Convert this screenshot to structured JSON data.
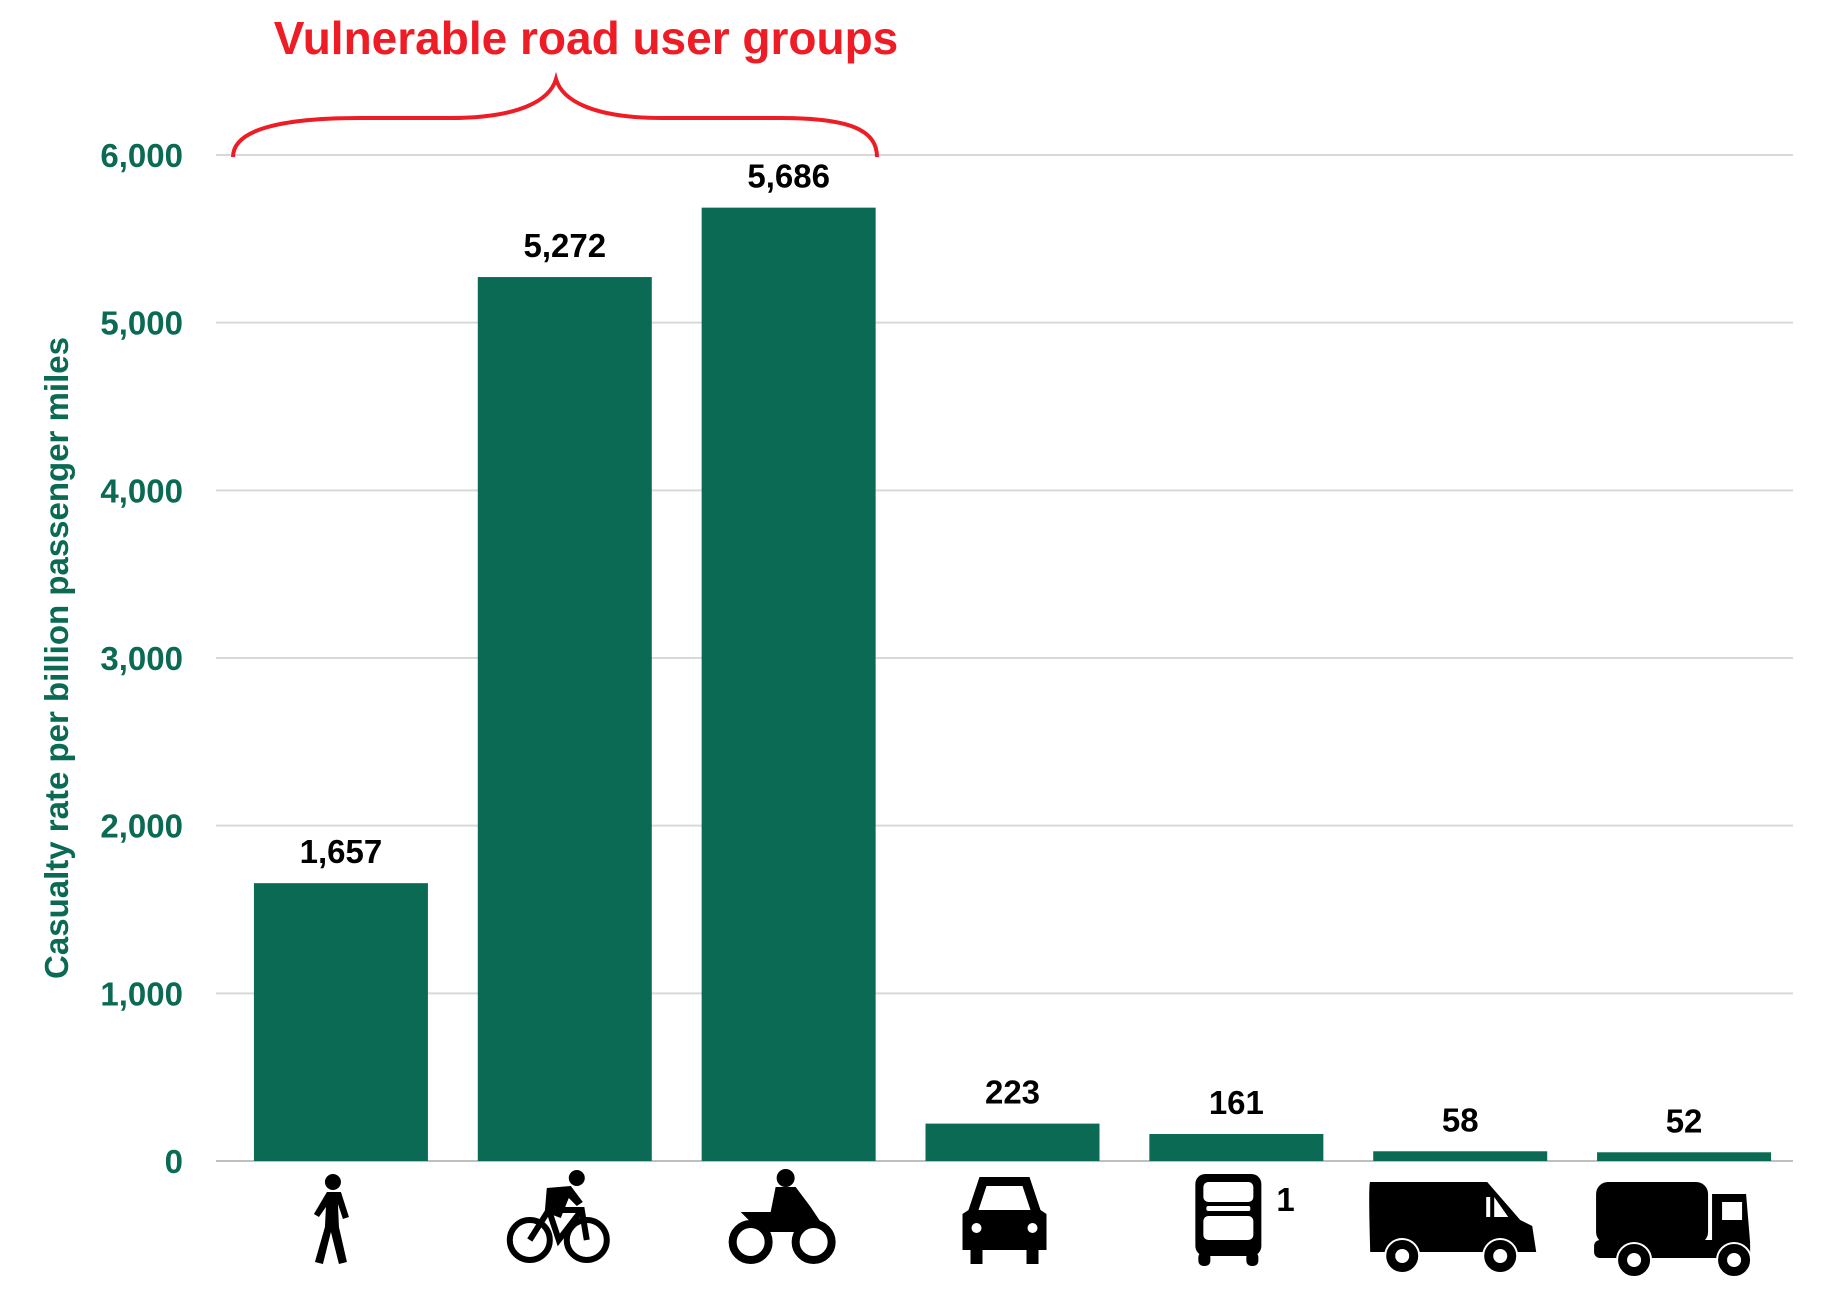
{
  "chart_data": {
    "type": "bar",
    "title": "",
    "annotation": "Vulnerable road user groups",
    "annotation_spans": [
      "Pedestrian",
      "Pedal cyclist",
      "Motorcyclist"
    ],
    "ylabel": "Casualty rate per billion passenger miles",
    "xlabel": "",
    "ylim": [
      0,
      6000
    ],
    "yticks": [
      0,
      1000,
      2000,
      3000,
      4000,
      5000,
      6000
    ],
    "ytick_labels": [
      "0",
      "1,000",
      "2,000",
      "3,000",
      "4,000",
      "5,000",
      "6,000"
    ],
    "grid": true,
    "categories": [
      "pedestrian-icon",
      "bicycle-icon",
      "motorcycle-icon",
      "car-icon",
      "bus-icon",
      "van-icon",
      "truck-icon"
    ],
    "category_footnotes": [
      "",
      "",
      "",
      "",
      "1",
      "",
      ""
    ],
    "values": [
      1657,
      5272,
      5686,
      223,
      161,
      58,
      52
    ],
    "data_labels": [
      "1,657",
      "5,272",
      "5,686",
      "223",
      "161",
      "58",
      "52"
    ],
    "colors": {
      "bar": "#0b6a53",
      "annotation": "#ee1c25",
      "axis_text": "#0b6a53",
      "grid": "#d9d9d9"
    }
  }
}
